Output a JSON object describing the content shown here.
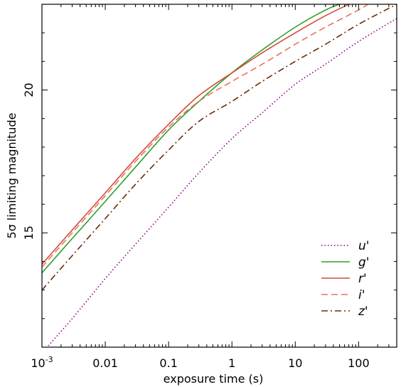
{
  "chart_data": {
    "type": "line",
    "title": "",
    "xlabel": "exposure time (s)",
    "ylabel": "5σ limiting magnitude",
    "x_scale": "log",
    "xlim": [
      0.001,
      400
    ],
    "ylim": [
      11,
      23
    ],
    "x_ticks": [
      {
        "value": 0.001,
        "base": "10",
        "exp": "-3"
      },
      {
        "value": 0.01,
        "label": "0.01"
      },
      {
        "value": 0.1,
        "label": "0.1"
      },
      {
        "value": 1,
        "label": "1"
      },
      {
        "value": 10,
        "label": "10"
      },
      {
        "value": 100,
        "label": "100"
      }
    ],
    "y_ticks": [
      {
        "value": 15,
        "label": "15"
      },
      {
        "value": 20,
        "label": "20"
      }
    ],
    "grid": false,
    "legend_position": "bottom-right",
    "series": [
      {
        "name": "u'",
        "color": "#8b008b",
        "dash": "dotted",
        "x": [
          0.001,
          0.003,
          0.01,
          0.03,
          0.1,
          0.3,
          1,
          3,
          10,
          30,
          100,
          400
        ],
        "y": [
          10.8,
          12.0,
          13.4,
          14.6,
          15.9,
          17.1,
          18.3,
          19.2,
          20.2,
          20.9,
          21.7,
          22.5
        ]
      },
      {
        "name": "g'",
        "color": "#2ca02c",
        "dash": "solid",
        "x": [
          0.001,
          0.003,
          0.01,
          0.03,
          0.1,
          0.3,
          1,
          3,
          10,
          30,
          50
        ],
        "y": [
          13.6,
          14.8,
          16.1,
          17.3,
          18.6,
          19.6,
          20.6,
          21.4,
          22.2,
          22.8,
          23.0
        ]
      },
      {
        "name": "r'",
        "color": "#d44a3a",
        "dash": "solid",
        "x": [
          0.001,
          0.003,
          0.01,
          0.03,
          0.1,
          0.3,
          1,
          3,
          10,
          30,
          70
        ],
        "y": [
          13.9,
          15.1,
          16.4,
          17.6,
          18.8,
          19.8,
          20.6,
          21.3,
          22.0,
          22.6,
          23.0
        ]
      },
      {
        "name": "i'",
        "color": "#e8725a",
        "dash": "dashed",
        "x": [
          0.001,
          0.003,
          0.01,
          0.03,
          0.1,
          0.3,
          1,
          3,
          10,
          30,
          100,
          140
        ],
        "y": [
          13.8,
          15.0,
          16.3,
          17.5,
          18.7,
          19.6,
          20.3,
          20.9,
          21.6,
          22.2,
          22.8,
          23.0
        ]
      },
      {
        "name": "z'",
        "color": "#6b2a0a",
        "dash": "dashdot",
        "x": [
          0.001,
          0.003,
          0.01,
          0.03,
          0.1,
          0.3,
          1,
          3,
          10,
          30,
          100,
          400
        ],
        "y": [
          13.0,
          14.2,
          15.5,
          16.7,
          17.9,
          18.9,
          19.6,
          20.3,
          21.0,
          21.6,
          22.3,
          23.0
        ]
      }
    ]
  }
}
